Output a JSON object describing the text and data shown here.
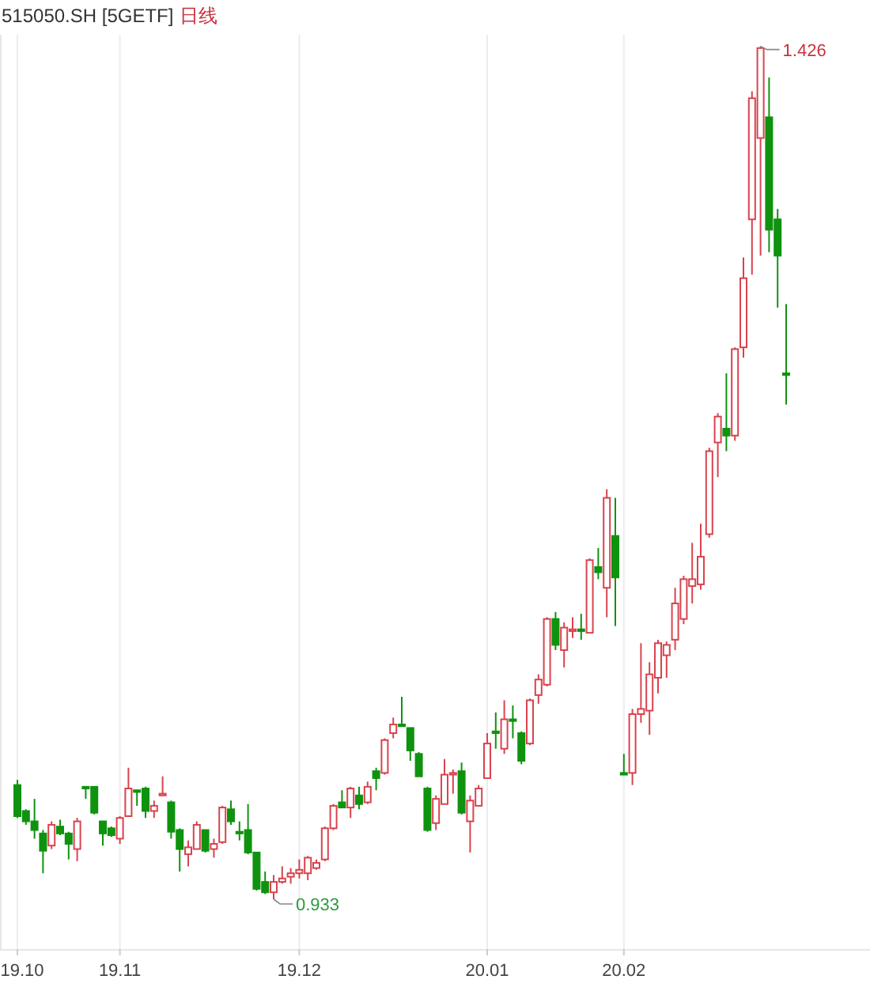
{
  "chart_data": {
    "type": "candlestick",
    "title": "515050.SH [5GETF]",
    "subtitle": "日线",
    "categories": [
      "19.10",
      null,
      null,
      null,
      null,
      null,
      null,
      null,
      null,
      null,
      null,
      null,
      "19.11",
      null,
      null,
      null,
      null,
      null,
      null,
      null,
      null,
      null,
      null,
      null,
      null,
      null,
      null,
      null,
      null,
      null,
      null,
      null,
      null,
      "19.12",
      null,
      null,
      null,
      null,
      null,
      null,
      null,
      null,
      null,
      null,
      null,
      null,
      null,
      null,
      null,
      null,
      null,
      null,
      null,
      null,
      null,
      "20.01",
      null,
      null,
      null,
      null,
      null,
      null,
      null,
      null,
      null,
      null,
      null,
      null,
      null,
      null,
      null,
      "20.02",
      null,
      null,
      null,
      null,
      null,
      null,
      null,
      null,
      null,
      null,
      null,
      null,
      null,
      null,
      null,
      null,
      null,
      null,
      null
    ],
    "ohlc": [
      [
        0.999,
        1.002,
        0.98,
        0.981
      ],
      [
        0.984,
        0.985,
        0.976,
        0.978
      ],
      [
        0.978,
        0.991,
        0.968,
        0.973
      ],
      [
        0.971,
        0.973,
        0.948,
        0.961
      ],
      [
        0.964,
        0.978,
        0.962,
        0.976
      ],
      [
        0.975,
        0.979,
        0.97,
        0.971
      ],
      [
        0.971,
        0.972,
        0.956,
        0.965
      ],
      [
        0.962,
        0.98,
        0.955,
        0.978
      ],
      [
        0.998,
        0.998,
        0.991,
        0.997
      ],
      [
        0.998,
        0.998,
        0.982,
        0.983
      ],
      [
        0.978,
        0.978,
        0.964,
        0.971
      ],
      [
        0.974,
        0.975,
        0.969,
        0.97
      ],
      [
        0.968,
        0.981,
        0.965,
        0.98
      ],
      [
        0.981,
        1.009,
        0.981,
        0.997
      ],
      [
        0.996,
        0.996,
        0.987,
        0.995
      ],
      [
        0.997,
        0.998,
        0.98,
        0.984
      ],
      [
        0.984,
        0.99,
        0.98,
        0.987
      ],
      [
        0.993,
        1.004,
        0.993,
        0.994
      ],
      [
        0.989,
        0.99,
        0.968,
        0.972
      ],
      [
        0.973,
        0.974,
        0.949,
        0.962
      ],
      [
        0.959,
        0.967,
        0.952,
        0.963
      ],
      [
        0.962,
        0.978,
        0.962,
        0.976
      ],
      [
        0.973,
        0.973,
        0.96,
        0.961
      ],
      [
        0.962,
        0.968,
        0.957,
        0.965
      ],
      [
        0.966,
        0.987,
        0.965,
        0.986
      ],
      [
        0.985,
        0.99,
        0.976,
        0.978
      ],
      [
        0.972,
        0.978,
        0.967,
        0.971
      ],
      [
        0.973,
        0.988,
        0.959,
        0.96
      ],
      [
        0.96,
        0.96,
        0.938,
        0.939
      ],
      [
        0.943,
        0.949,
        0.936,
        0.937
      ],
      [
        0.937,
        0.947,
        0.933,
        0.943
      ],
      [
        0.943,
        0.952,
        0.942,
        0.945
      ],
      [
        0.946,
        0.951,
        0.942,
        0.948
      ],
      [
        0.948,
        0.956,
        0.945,
        0.95
      ],
      [
        0.948,
        0.958,
        0.944,
        0.957
      ],
      [
        0.951,
        0.956,
        0.95,
        0.954
      ],
      [
        0.956,
        0.975,
        0.955,
        0.974
      ],
      [
        0.974,
        0.988,
        0.973,
        0.987
      ],
      [
        0.989,
        0.996,
        0.986,
        0.986
      ],
      [
        0.986,
        0.998,
        0.98,
        0.997
      ],
      [
        0.993,
        0.998,
        0.985,
        0.988
      ],
      [
        0.989,
        1.001,
        0.988,
        0.998
      ],
      [
        1.007,
        1.009,
        0.996,
        1.003
      ],
      [
        1.006,
        1.026,
        1.005,
        1.025
      ],
      [
        1.029,
        1.038,
        1.026,
        1.034
      ],
      [
        1.034,
        1.05,
        1.033,
        1.033
      ],
      [
        1.032,
        1.032,
        1.013,
        1.019
      ],
      [
        1.017,
        1.018,
        1.004,
        1.004
      ],
      [
        0.997,
        0.998,
        0.972,
        0.973
      ],
      [
        0.977,
        0.993,
        0.973,
        0.991
      ],
      [
        0.988,
        1.014,
        0.988,
        1.005
      ],
      [
        1.005,
        1.008,
        0.994,
        1.006
      ],
      [
        1.007,
        1.012,
        0.982,
        0.983
      ],
      [
        0.978,
        0.993,
        0.96,
        0.99
      ],
      [
        0.987,
        0.999,
        0.987,
        0.997
      ],
      [
        1.003,
        1.029,
        1.003,
        1.023
      ],
      [
        1.03,
        1.041,
        1.02,
        1.029
      ],
      [
        1.02,
        1.048,
        1.017,
        1.037
      ],
      [
        1.037,
        1.045,
        1.026,
        1.036
      ],
      [
        1.029,
        1.03,
        1.011,
        1.013
      ],
      [
        1.023,
        1.049,
        1.022,
        1.048
      ],
      [
        1.051,
        1.063,
        1.046,
        1.06
      ],
      [
        1.057,
        1.096,
        1.056,
        1.095
      ],
      [
        1.095,
        1.099,
        1.077,
        1.08
      ],
      [
        1.077,
        1.093,
        1.067,
        1.09
      ],
      [
        1.088,
        1.096,
        1.084,
        1.089
      ],
      [
        1.089,
        1.098,
        1.083,
        1.088
      ],
      [
        1.087,
        1.13,
        1.087,
        1.129
      ],
      [
        1.125,
        1.136,
        1.118,
        1.122
      ],
      [
        1.113,
        1.17,
        1.096,
        1.165
      ],
      [
        1.143,
        1.165,
        1.091,
        1.119
      ],
      [
        1.006,
        1.017,
        1.005,
        1.005
      ],
      [
        1.006,
        1.043,
        0.999,
        1.04
      ],
      [
        1.04,
        1.081,
        1.035,
        1.043
      ],
      [
        1.042,
        1.07,
        1.028,
        1.063
      ],
      [
        1.061,
        1.083,
        1.052,
        1.081
      ],
      [
        1.074,
        1.082,
        1.061,
        1.08
      ],
      [
        1.083,
        1.113,
        1.077,
        1.104
      ],
      [
        1.095,
        1.12,
        1.092,
        1.118
      ],
      [
        1.114,
        1.139,
        1.104,
        1.118
      ],
      [
        1.115,
        1.15,
        1.112,
        1.131
      ],
      [
        1.144,
        1.194,
        1.142,
        1.192
      ],
      [
        1.197,
        1.214,
        1.177,
        1.212
      ],
      [
        1.205,
        1.237,
        1.192,
        1.201
      ],
      [
        1.201,
        1.252,
        1.198,
        1.251
      ],
      [
        1.252,
        1.304,
        1.246,
        1.292
      ],
      [
        1.326,
        1.4,
        1.294,
        1.396
      ],
      [
        1.373,
        1.426,
        1.305,
        1.425
      ],
      [
        1.385,
        1.408,
        1.307,
        1.32
      ],
      [
        1.326,
        1.332,
        1.275,
        1.305
      ],
      [
        1.237,
        1.277,
        1.219,
        1.236
      ]
    ],
    "annotations": [
      "1.426",
      "0.933"
    ],
    "grid": "x"
  }
}
